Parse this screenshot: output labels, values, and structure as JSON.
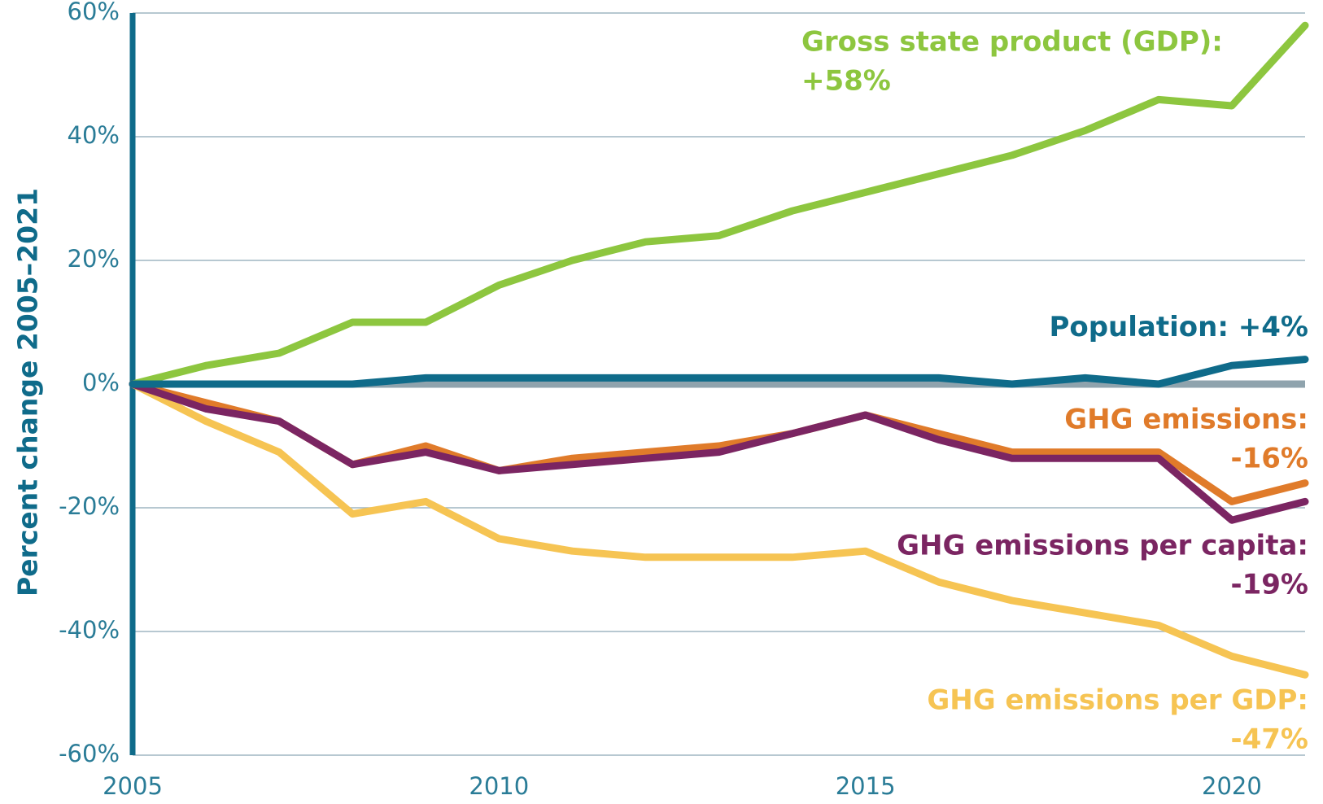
{
  "chart_data": {
    "type": "line",
    "y_label": "Percent change 2005–2021",
    "x": [
      2005,
      2006,
      2007,
      2008,
      2009,
      2010,
      2011,
      2012,
      2013,
      2014,
      2015,
      2016,
      2017,
      2018,
      2019,
      2020,
      2021
    ],
    "xlim": [
      2005,
      2021
    ],
    "xticks": [
      2005,
      2010,
      2015,
      2020
    ],
    "ylim": [
      -60,
      60
    ],
    "yticks": [
      {
        "value": -60,
        "label": "-60%"
      },
      {
        "value": -40,
        "label": "-40%"
      },
      {
        "value": -20,
        "label": "-20%"
      },
      {
        "value": 0,
        "label": "0%"
      },
      {
        "value": 20,
        "label": "20%"
      },
      {
        "value": 40,
        "label": "40%"
      },
      {
        "value": 60,
        "label": "60%"
      }
    ],
    "grid": true,
    "series": [
      {
        "name": "Gross state product (GDP):",
        "value_label": "+58%",
        "color": "#8dc63f",
        "values": [
          0,
          3,
          5,
          10,
          10,
          16,
          20,
          23,
          24,
          28,
          31,
          34,
          37,
          41,
          46,
          45,
          58
        ]
      },
      {
        "name": "Population:",
        "value_label": "+4%",
        "color": "#0f6b8a",
        "values": [
          0,
          0,
          0,
          0,
          1,
          1,
          1,
          1,
          1,
          1,
          1,
          1,
          0,
          1,
          0,
          3,
          4
        ]
      },
      {
        "name": "GHG emissions:",
        "value_label": "-16%",
        "color": "#e07b2a",
        "values": [
          0,
          -3,
          -6,
          -13,
          -10,
          -14,
          -12,
          -11,
          -10,
          -8,
          -5,
          -8,
          -11,
          -11,
          -11,
          -19,
          -16
        ]
      },
      {
        "name": "GHG emissions per capita:",
        "value_label": "-19%",
        "color": "#7b2562",
        "values": [
          0,
          -4,
          -6,
          -13,
          -11,
          -14,
          -13,
          -12,
          -11,
          -8,
          -5,
          -9,
          -12,
          -12,
          -12,
          -22,
          -19
        ]
      },
      {
        "name": "GHG emissions per GDP:",
        "value_label": "-47%",
        "color": "#f6c453",
        "values": [
          0,
          -6,
          -11,
          -21,
          -19,
          -25,
          -27,
          -28,
          -28,
          -28,
          -27,
          -32,
          -35,
          -37,
          -39,
          -44,
          -47
        ]
      }
    ]
  }
}
